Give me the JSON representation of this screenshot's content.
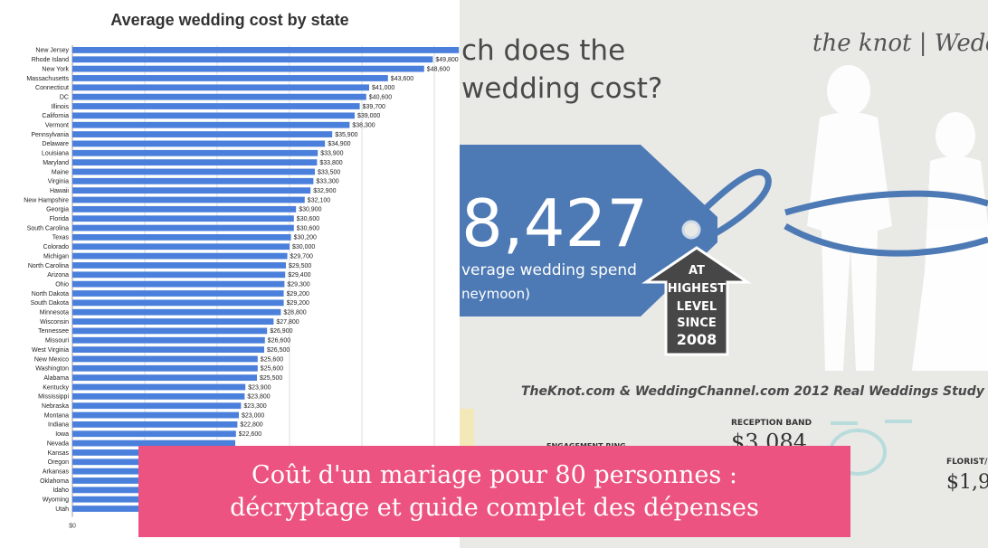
{
  "chart_data": {
    "type": "bar",
    "orientation": "horizontal",
    "title": "Average wedding cost by state",
    "categories": [
      "New Jersey",
      "Rhode Island",
      "New York",
      "Massachusetts",
      "Connecticut",
      "DC",
      "Illinois",
      "California",
      "Vermont",
      "Pennsylvania",
      "Delaware",
      "Louisiana",
      "Maryland",
      "Maine",
      "Virginia",
      "Hawaii",
      "New Hampshire",
      "Georgia",
      "Florida",
      "South Carolina",
      "Texas",
      "Colorado",
      "Michigan",
      "North Carolina",
      "Arizona",
      "Ohio",
      "North Dakota",
      "South Dakota",
      "Minnesota",
      "Wisconsin",
      "Tennessee",
      "Missouri",
      "West Virginia",
      "New Mexico",
      "Washington",
      "Alabama",
      "Kentucky",
      "Mississippi",
      "Nebraska",
      "Montana",
      "Indiana",
      "Iowa",
      "Nevada",
      "Kansas",
      "Oregon",
      "Arkansas",
      "Oklahoma",
      "Idaho",
      "Wyoming",
      "Utah"
    ],
    "values": [
      53400,
      49800,
      48600,
      43600,
      41000,
      40600,
      39700,
      39000,
      38300,
      35900,
      34900,
      33900,
      33800,
      33500,
      33300,
      32900,
      32100,
      30900,
      30600,
      30600,
      30200,
      30000,
      29700,
      29500,
      29400,
      29300,
      29200,
      29200,
      28800,
      27800,
      26900,
      26600,
      26500,
      25600,
      25600,
      25500,
      23900,
      23800,
      23300,
      23000,
      22800,
      22600,
      22500,
      22000,
      21500,
      21000,
      20500,
      20000,
      19000,
      17000
    ],
    "labels": [
      "$53,400",
      "$49,800",
      "$48,600",
      "$43,600",
      "$41,000",
      "$40,600",
      "$39,700",
      "$39,000",
      "$38,300",
      "$35,900",
      "$34,900",
      "$33,900",
      "$33,800",
      "$33,500",
      "$33,300",
      "$32,900",
      "$32,100",
      "$30,900",
      "$30,600",
      "$30,600",
      "$30,200",
      "$30,000",
      "$29,700",
      "$29,500",
      "$29,400",
      "$29,300",
      "$29,200",
      "$29,200",
      "$28,800",
      "$27,800",
      "$26,900",
      "$26,600",
      "$26,500",
      "$25,600",
      "$25,600",
      "$25,500",
      "$23,900",
      "$23,800",
      "$23,300",
      "$23,000",
      "$22,800",
      "$22,600",
      "",
      "",
      "",
      "",
      "",
      "",
      "",
      ""
    ],
    "xlim": [
      0,
      60000
    ],
    "x_tick_label": "$0",
    "bar_color": "#4a7fdb",
    "grid": true,
    "legend": "none"
  },
  "infographic": {
    "headline_line1": "ch does the",
    "headline_line2": "wedding cost?",
    "brand": "the knot | Weddin",
    "amount": "8,427",
    "tag_sub1": "verage wedding spend",
    "tag_sub2": "neymoon)",
    "arrow_text": [
      "AT",
      "HIGHEST",
      "LEVEL",
      "SINCE",
      "2008"
    ],
    "study": "TheKnot.com & WeddingChannel.com 2012 Real Weddings Study",
    "reception_band_label": "RECEPTION BAND",
    "reception_band_value": "$3,084",
    "engagement_label": "ENGAGEMENT RING",
    "florist_label": "FLORIST/D",
    "florist_value": "$1,9",
    "tag_color": "#4d7ab5",
    "ribbon_color": "#4d7ab5",
    "arrow_color": "#474747"
  },
  "banner": {
    "line1": "Coût d'un mariage pour 80 personnes :",
    "line2": "décryptage et guide complet des dépenses",
    "color": "#ec5380"
  }
}
